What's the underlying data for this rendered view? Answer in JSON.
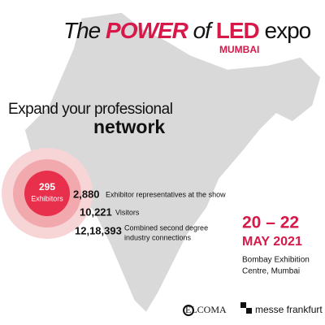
{
  "header": {
    "title_parts": [
      "The",
      "POWER",
      "of",
      "LED",
      "expo"
    ],
    "city": "MUMBAI"
  },
  "tagline": {
    "line1": "Expand your professional",
    "line2": "network"
  },
  "badge": {
    "number": "295",
    "label": "Exhibitors"
  },
  "stats": [
    {
      "number": "2,880",
      "label_lines": [
        "Exhibitor representatives at the show"
      ]
    },
    {
      "number": "10,221",
      "label_lines": [
        "Visitors"
      ]
    },
    {
      "number": "12,18,393",
      "label_lines": [
        "Combined second degree",
        "industry connections"
      ]
    }
  ],
  "event": {
    "dates": "20 – 22",
    "month_year": "MAY 2021",
    "venue_lines": [
      "Bombay Exhibition",
      "Centre, Mumbai"
    ]
  },
  "logos": [
    "ELCOMA",
    "messe frankfurt"
  ]
}
